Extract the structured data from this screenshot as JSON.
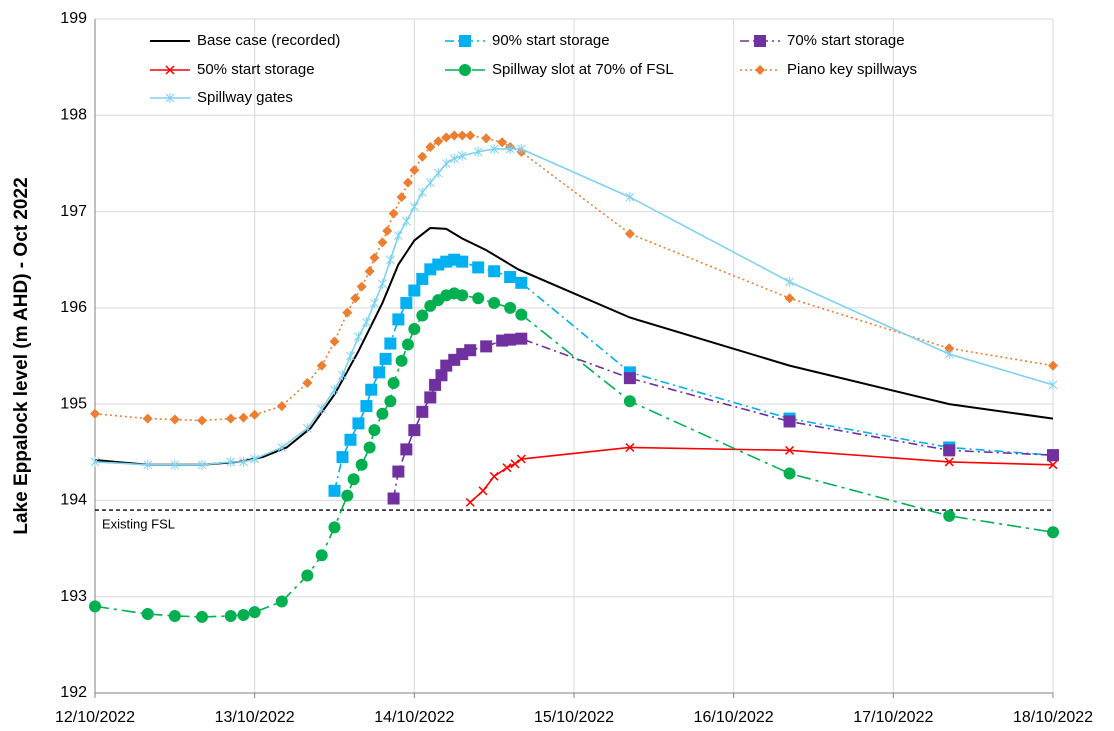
{
  "chart_data": {
    "type": "line",
    "y_label": "Lake Eppalock level (m AHD) - Oct 2022",
    "xlim": [
      12,
      18
    ],
    "xticks": [
      {
        "value": 12,
        "label": "12/10/2022"
      },
      {
        "value": 13,
        "label": "13/10/2022"
      },
      {
        "value": 14,
        "label": "14/10/2022"
      },
      {
        "value": 15,
        "label": "15/10/2022"
      },
      {
        "value": 16,
        "label": "16/10/2022"
      },
      {
        "value": 17,
        "label": "17/10/2022"
      },
      {
        "value": 18,
        "label": "18/10/2022"
      }
    ],
    "ylim": [
      192,
      199
    ],
    "yticks": [
      192,
      193,
      194,
      195,
      196,
      197,
      198,
      199
    ],
    "grid": true,
    "legend": "top-left",
    "reference_lines": [
      {
        "value": 193.9,
        "label": "Existing FSL",
        "color": "#000000"
      }
    ],
    "series": [
      {
        "name": "Base case (recorded)",
        "color": "#000000",
        "marker": "none",
        "dash": "solid",
        "x": [
          12.0,
          12.33,
          12.67,
          12.9,
          13.05,
          13.2,
          13.35,
          13.5,
          13.65,
          13.8,
          13.9,
          14.0,
          14.1,
          14.2,
          14.3,
          14.45,
          14.65,
          15.0,
          15.35,
          16.35,
          17.35,
          18.0
        ],
        "values": [
          194.42,
          194.37,
          194.37,
          194.4,
          194.45,
          194.55,
          194.75,
          195.1,
          195.55,
          196.05,
          196.45,
          196.7,
          196.83,
          196.82,
          196.72,
          196.6,
          196.4,
          196.15,
          195.9,
          195.4,
          195.0,
          194.85
        ]
      },
      {
        "name": "90% start storage",
        "color": "#00b0f0",
        "marker": "square",
        "dash": "dashdot",
        "x": [
          13.5,
          13.55,
          13.6,
          13.65,
          13.7,
          13.73,
          13.78,
          13.82,
          13.85,
          13.9,
          13.95,
          14.0,
          14.05,
          14.1,
          14.15,
          14.2,
          14.25,
          14.3,
          14.4,
          14.5,
          14.6,
          14.67,
          15.35,
          16.35,
          17.35,
          18.0
        ],
        "values": [
          194.1,
          194.45,
          194.63,
          194.8,
          194.98,
          195.15,
          195.33,
          195.47,
          195.63,
          195.88,
          196.05,
          196.18,
          196.3,
          196.4,
          196.45,
          196.48,
          196.5,
          196.48,
          196.42,
          196.38,
          196.32,
          196.26,
          195.33,
          194.85,
          194.55,
          194.47
        ]
      },
      {
        "name": "70% start storage",
        "color": "#7030a0",
        "marker": "square",
        "dash": "dashdot",
        "x": [
          13.87,
          13.9,
          13.95,
          14.0,
          14.05,
          14.1,
          14.13,
          14.17,
          14.2,
          14.25,
          14.3,
          14.35,
          14.45,
          14.55,
          14.6,
          14.67,
          15.35,
          16.35,
          17.35,
          18.0
        ],
        "values": [
          194.02,
          194.3,
          194.53,
          194.73,
          194.92,
          195.07,
          195.2,
          195.3,
          195.4,
          195.46,
          195.52,
          195.56,
          195.6,
          195.66,
          195.67,
          195.68,
          195.27,
          194.82,
          194.52,
          194.47
        ]
      },
      {
        "name": "50% start storage",
        "color": "#ff0000",
        "marker": "cross",
        "dash": "solid",
        "x": [
          14.35,
          14.43,
          14.5,
          14.58,
          14.63,
          14.67,
          15.35,
          16.35,
          17.35,
          18.0
        ],
        "values": [
          193.98,
          194.1,
          194.25,
          194.34,
          194.38,
          194.43,
          194.55,
          194.52,
          194.4,
          194.37
        ]
      },
      {
        "name": "Spillway slot at 70% of FSL",
        "color": "#00b050",
        "marker": "circle",
        "dash": "longdashdot",
        "x": [
          12.0,
          12.33,
          12.5,
          12.67,
          12.85,
          12.93,
          13.0,
          13.17,
          13.33,
          13.42,
          13.5,
          13.58,
          13.62,
          13.67,
          13.72,
          13.75,
          13.8,
          13.85,
          13.87,
          13.92,
          13.96,
          14.0,
          14.05,
          14.1,
          14.15,
          14.2,
          14.25,
          14.3,
          14.4,
          14.5,
          14.6,
          14.67,
          15.35,
          16.35,
          17.35,
          18.0
        ],
        "values": [
          192.9,
          192.82,
          192.8,
          192.79,
          192.8,
          192.81,
          192.84,
          192.95,
          193.22,
          193.43,
          193.72,
          194.05,
          194.22,
          194.37,
          194.55,
          194.73,
          194.9,
          195.03,
          195.22,
          195.45,
          195.62,
          195.78,
          195.92,
          196.02,
          196.08,
          196.13,
          196.15,
          196.13,
          196.1,
          196.05,
          196.0,
          195.93,
          195.03,
          194.28,
          193.84,
          193.67
        ]
      },
      {
        "name": "Piano key spillways",
        "color": "#ed7d31",
        "marker": "diamond",
        "dash": "dotted",
        "x": [
          12.0,
          12.33,
          12.5,
          12.67,
          12.85,
          12.93,
          13.0,
          13.17,
          13.33,
          13.42,
          13.5,
          13.58,
          13.63,
          13.67,
          13.72,
          13.75,
          13.8,
          13.83,
          13.87,
          13.92,
          13.96,
          14.0,
          14.05,
          14.1,
          14.15,
          14.2,
          14.25,
          14.3,
          14.35,
          14.45,
          14.55,
          14.6,
          14.67,
          15.35,
          16.35,
          17.35,
          18.0
        ],
        "values": [
          194.9,
          194.85,
          194.84,
          194.83,
          194.85,
          194.86,
          194.89,
          194.98,
          195.22,
          195.4,
          195.65,
          195.95,
          196.1,
          196.22,
          196.38,
          196.52,
          196.68,
          196.8,
          196.98,
          197.15,
          197.3,
          197.43,
          197.57,
          197.67,
          197.73,
          197.77,
          197.79,
          197.79,
          197.79,
          197.76,
          197.72,
          197.67,
          197.62,
          196.77,
          196.1,
          195.58,
          195.4
        ]
      },
      {
        "name": "Spillway gates",
        "color": "#7fd1f0",
        "marker": "asterisk",
        "dash": "solid",
        "x": [
          12.0,
          12.33,
          12.5,
          12.67,
          12.85,
          12.93,
          13.0,
          13.17,
          13.33,
          13.42,
          13.5,
          13.55,
          13.6,
          13.65,
          13.7,
          13.75,
          13.8,
          13.85,
          13.9,
          13.95,
          14.0,
          14.05,
          14.1,
          14.15,
          14.2,
          14.25,
          14.3,
          14.4,
          14.5,
          14.6,
          14.67,
          15.35,
          16.35,
          17.35,
          18.0
        ],
        "values": [
          194.4,
          194.37,
          194.37,
          194.37,
          194.4,
          194.4,
          194.43,
          194.55,
          194.75,
          194.95,
          195.15,
          195.3,
          195.5,
          195.7,
          195.85,
          196.05,
          196.25,
          196.5,
          196.75,
          196.9,
          197.05,
          197.2,
          197.3,
          197.4,
          197.5,
          197.55,
          197.58,
          197.62,
          197.65,
          197.65,
          197.65,
          197.15,
          196.27,
          195.52,
          195.2
        ]
      }
    ]
  }
}
